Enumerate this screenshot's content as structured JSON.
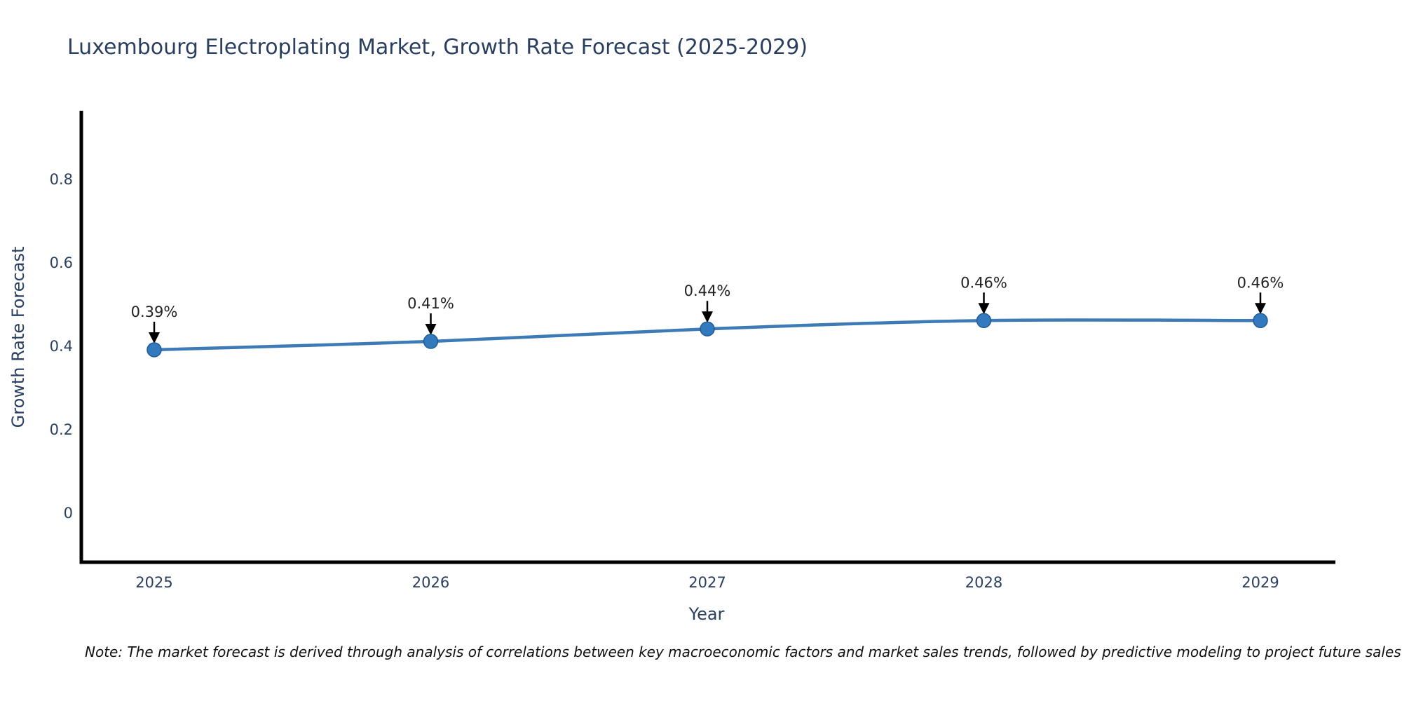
{
  "title": "Luxembourg Electroplating Market, Growth Rate Forecast (2025-2029)",
  "note": "Note: The market forecast is derived through analysis of correlations between key macroeconomic factors and market sales trends, followed by predictive modeling to project future sales",
  "chart_data": {
    "type": "line",
    "title": "Luxembourg Electroplating Market, Growth Rate Forecast (2025-2029)",
    "xlabel": "Year",
    "ylabel": "Growth Rate Forecast",
    "x": [
      2025,
      2026,
      2027,
      2028,
      2029
    ],
    "values": [
      0.39,
      0.41,
      0.44,
      0.46,
      0.46
    ],
    "point_labels": [
      "0.39%",
      "0.41%",
      "0.44%",
      "0.46%",
      "0.46%"
    ],
    "yticks": [
      0,
      0.2,
      0.4,
      0.6,
      0.8
    ],
    "xlim": [
      2024.73,
      2029.27
    ],
    "ylim": [
      -0.12,
      0.96
    ],
    "line_shape": "spline",
    "grid": false,
    "legend": "none",
    "annotation_style": "value label with down arrow to marker",
    "colors": {
      "line": "#3d7ab6",
      "marker_fill": "#3279bd",
      "marker_stroke": "#1f5c96",
      "axis": "#000000",
      "tick_text": "#2a3f5f",
      "annotation_text": "#222222"
    }
  }
}
